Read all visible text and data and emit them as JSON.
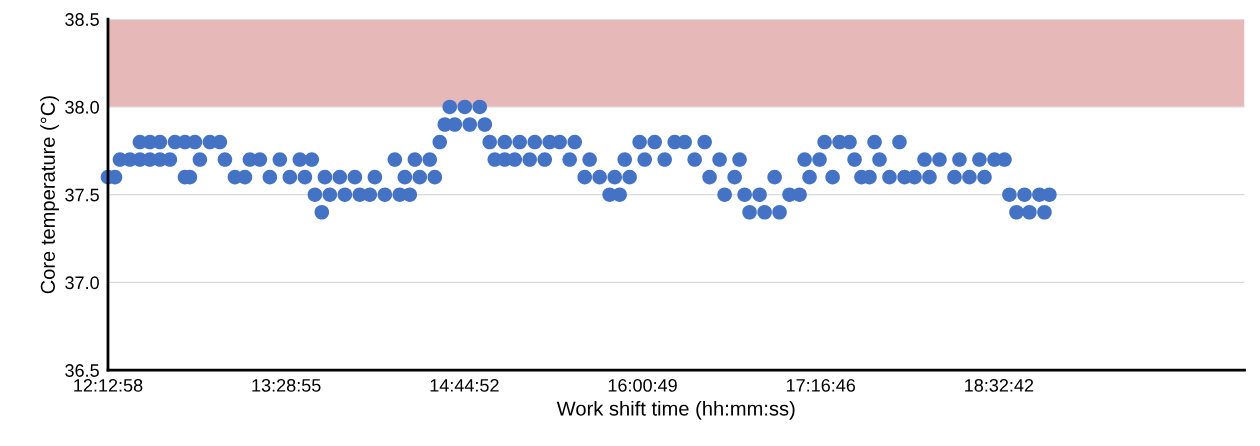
{
  "chart_data": {
    "type": "scatter",
    "xlabel": "Work shift time (hh:mm:ss)",
    "ylabel": "Core temperature (°C)",
    "xlim": [
      12.2161,
      20.29
    ],
    "ylim": [
      36.5,
      38.5
    ],
    "xticks": [
      {
        "value": 12.2161,
        "label": "12:12:58"
      },
      {
        "value": 13.4819,
        "label": "13:28:55"
      },
      {
        "value": 14.7478,
        "label": "14:44:52"
      },
      {
        "value": 16.0136,
        "label": "16:00:49"
      },
      {
        "value": 17.2794,
        "label": "17:16:46"
      },
      {
        "value": 18.545,
        "label": "18:32:42"
      }
    ],
    "yticks": [
      {
        "value": 36.5,
        "label": "36.5"
      },
      {
        "value": 37.0,
        "label": "37.0"
      },
      {
        "value": 37.5,
        "label": "37.5"
      },
      {
        "value": 38.0,
        "label": "38.0"
      },
      {
        "value": 38.5,
        "label": "38.5"
      }
    ],
    "grid": "y",
    "marker": "circle",
    "bands": [
      {
        "axis": "y",
        "from": 38.0,
        "to": 38.5,
        "color": "#e6b8b7"
      }
    ],
    "series": [
      {
        "color": "#4472c4",
        "x": [
          12.2161,
          12.266,
          12.301,
          12.372,
          12.443,
          12.443,
          12.514,
          12.514,
          12.585,
          12.585,
          12.656,
          12.692,
          12.763,
          12.763,
          12.798,
          12.834,
          12.869,
          12.94,
          13.011,
          13.047,
          13.118,
          13.189,
          13.224,
          13.295,
          13.366,
          13.437,
          13.508,
          13.579,
          13.615,
          13.664,
          13.686,
          13.735,
          13.757,
          13.792,
          13.863,
          13.899,
          13.97,
          14.005,
          14.076,
          14.112,
          14.183,
          14.254,
          14.289,
          14.325,
          14.36,
          14.396,
          14.431,
          14.502,
          14.538,
          14.573,
          14.609,
          14.644,
          14.68,
          14.751,
          14.786,
          14.857,
          14.893,
          14.928,
          14.964,
          15.035,
          15.035,
          15.106,
          15.141,
          15.212,
          15.248,
          15.319,
          15.354,
          15.425,
          15.496,
          15.532,
          15.603,
          15.638,
          15.709,
          15.78,
          15.816,
          15.851,
          15.887,
          15.922,
          15.993,
          16.029,
          16.1,
          16.171,
          16.242,
          16.313,
          16.384,
          16.455,
          16.49,
          16.561,
          16.597,
          16.668,
          16.703,
          16.739,
          16.774,
          16.845,
          16.881,
          16.952,
          16.987,
          17.058,
          17.129,
          17.165,
          17.2,
          17.271,
          17.307,
          17.364,
          17.413,
          17.484,
          17.52,
          17.569,
          17.626,
          17.662,
          17.697,
          17.768,
          17.839,
          17.875,
          17.946,
          18.017,
          18.052,
          18.123,
          18.23,
          18.265,
          18.336,
          18.407,
          18.443,
          18.514,
          18.585,
          18.62,
          18.67,
          18.727,
          18.762,
          18.833,
          18.869,
          18.904
        ],
        "values": [
          37.6,
          37.6,
          37.7,
          37.7,
          37.8,
          37.7,
          37.8,
          37.7,
          37.8,
          37.7,
          37.7,
          37.8,
          37.8,
          37.6,
          37.6,
          37.8,
          37.7,
          37.8,
          37.8,
          37.7,
          37.6,
          37.6,
          37.7,
          37.7,
          37.6,
          37.7,
          37.6,
          37.7,
          37.6,
          37.7,
          37.5,
          37.4,
          37.6,
          37.5,
          37.6,
          37.5,
          37.6,
          37.5,
          37.5,
          37.6,
          37.5,
          37.7,
          37.5,
          37.6,
          37.5,
          37.7,
          37.6,
          37.7,
          37.6,
          37.8,
          37.9,
          38.0,
          37.9,
          38.0,
          37.9,
          38.0,
          37.9,
          37.8,
          37.7,
          37.8,
          37.7,
          37.7,
          37.8,
          37.7,
          37.8,
          37.7,
          37.8,
          37.8,
          37.7,
          37.8,
          37.6,
          37.7,
          37.6,
          37.5,
          37.6,
          37.5,
          37.7,
          37.6,
          37.8,
          37.7,
          37.8,
          37.7,
          37.8,
          37.8,
          37.7,
          37.8,
          37.6,
          37.7,
          37.5,
          37.6,
          37.7,
          37.5,
          37.4,
          37.5,
          37.4,
          37.6,
          37.4,
          37.5,
          37.5,
          37.7,
          37.6,
          37.7,
          37.8,
          37.6,
          37.8,
          37.8,
          37.7,
          37.6,
          37.6,
          37.8,
          37.7,
          37.6,
          37.8,
          37.6,
          37.6,
          37.7,
          37.6,
          37.7,
          37.6,
          37.7,
          37.6,
          37.7,
          37.6,
          37.7,
          37.7,
          37.5,
          37.4,
          37.5,
          37.4,
          37.5,
          37.4,
          37.5
        ]
      }
    ]
  }
}
